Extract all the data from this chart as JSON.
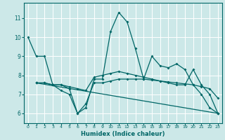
{
  "xlabel": "Humidex (Indice chaleur)",
  "bg_color": "#cce8e8",
  "line_color": "#006666",
  "grid_color": "#ffffff",
  "xlim": [
    -0.5,
    23.5
  ],
  "ylim": [
    5.5,
    11.8
  ],
  "yticks": [
    6,
    7,
    8,
    9,
    10,
    11
  ],
  "xticks": [
    0,
    1,
    2,
    3,
    4,
    5,
    6,
    7,
    8,
    9,
    10,
    11,
    12,
    13,
    14,
    15,
    16,
    17,
    18,
    19,
    20,
    21,
    22,
    23
  ],
  "series1_x": [
    0,
    1,
    2,
    3,
    4,
    5,
    6,
    7,
    8,
    9,
    10,
    11,
    12,
    13,
    14,
    15,
    16,
    17,
    18,
    19,
    20,
    21,
    22,
    23
  ],
  "series1_y": [
    10.0,
    9.0,
    9.0,
    7.5,
    7.2,
    7.0,
    6.0,
    6.3,
    7.8,
    7.8,
    10.3,
    11.3,
    10.8,
    9.4,
    7.8,
    9.0,
    8.5,
    8.4,
    8.6,
    8.3,
    7.5,
    7.0,
    6.3,
    6.0
  ],
  "series2_x": [
    1,
    2,
    3,
    4,
    5,
    6,
    7,
    8,
    9,
    10,
    11,
    12,
    13,
    14,
    15,
    16,
    17,
    18,
    19,
    20,
    21,
    22,
    23
  ],
  "series2_y": [
    7.6,
    7.6,
    7.5,
    7.5,
    7.4,
    7.3,
    7.2,
    7.9,
    8.0,
    8.1,
    8.2,
    8.1,
    8.0,
    7.9,
    7.8,
    7.7,
    7.6,
    7.5,
    7.5,
    8.3,
    7.5,
    7.0,
    6.0
  ],
  "series3_x": [
    1,
    2,
    3,
    4,
    5,
    6,
    7,
    8,
    9,
    10,
    11,
    12,
    13,
    14,
    15,
    16,
    17,
    18,
    19,
    20,
    21,
    22,
    23
  ],
  "series3_y": [
    7.6,
    7.6,
    7.5,
    7.5,
    7.3,
    6.0,
    6.5,
    7.6,
    7.6,
    7.7,
    7.8,
    7.8,
    7.8,
    7.8,
    7.75,
    7.7,
    7.65,
    7.6,
    7.55,
    7.5,
    7.4,
    7.3,
    6.8
  ],
  "series4_x": [
    1,
    23
  ],
  "series4_y": [
    7.6,
    6.0
  ]
}
